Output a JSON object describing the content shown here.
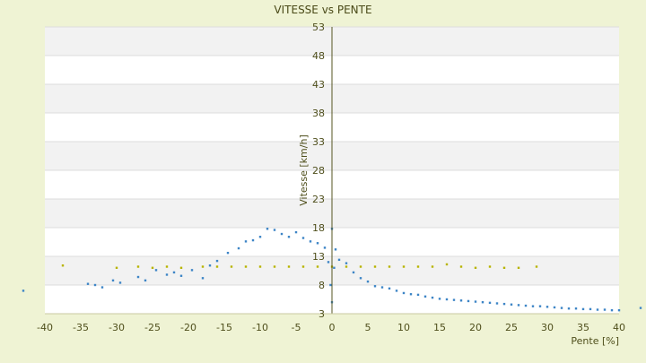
{
  "chart_data": {
    "type": "scatter",
    "title": "VITESSE vs PENTE",
    "xlabel": "Pente [%]",
    "ylabel": "Vitesse [km/h]",
    "xlim": [
      -40,
      40
    ],
    "ylim": [
      3,
      53
    ],
    "xticks": [
      -40,
      -35,
      -30,
      -25,
      -20,
      -15,
      -10,
      -5,
      0,
      5,
      10,
      15,
      20,
      25,
      30,
      35,
      40
    ],
    "yticks": [
      3,
      8,
      13,
      18,
      23,
      28,
      33,
      38,
      43,
      48,
      53
    ],
    "grid": "alternating horizontal bands",
    "legend": "none",
    "colors": {
      "background": "#eff3d4",
      "plot_band_light": "#ffffff",
      "plot_band_dark": "#f2f2f2",
      "series_blue": "#3d85c6",
      "series_yellow": "#b8b400",
      "axis": "#555522",
      "text": "#4f4f1c"
    },
    "series": [
      {
        "color": "#3d85c6",
        "values": [
          [
            -43,
            7.0
          ],
          [
            -34,
            8.2
          ],
          [
            -33,
            8.0
          ],
          [
            -32,
            7.6
          ],
          [
            -30.5,
            8.8
          ],
          [
            -29.5,
            8.4
          ],
          [
            -27,
            9.4
          ],
          [
            -26,
            8.8
          ],
          [
            -24.5,
            10.6
          ],
          [
            -23,
            9.8
          ],
          [
            -22,
            10.2
          ],
          [
            -21,
            9.6
          ],
          [
            -19.5,
            10.6
          ],
          [
            -18,
            9.2
          ],
          [
            -17,
            11.4
          ],
          [
            -16,
            12.2
          ],
          [
            -14.5,
            13.6
          ],
          [
            -13,
            14.4
          ],
          [
            -12,
            15.6
          ],
          [
            -11,
            15.8
          ],
          [
            -10,
            16.4
          ],
          [
            -9,
            17.8
          ],
          [
            -8,
            17.6
          ],
          [
            -7,
            16.9
          ],
          [
            -6,
            16.4
          ],
          [
            -5,
            17.2
          ],
          [
            -4,
            16.2
          ],
          [
            -3,
            15.6
          ],
          [
            -2,
            15.3
          ],
          [
            -1,
            14.5
          ],
          [
            -0.5,
            12.0
          ],
          [
            -0.2,
            8.0
          ],
          [
            0,
            5.0
          ],
          [
            0,
            17.8
          ],
          [
            0.3,
            11.0
          ],
          [
            0.5,
            14.2
          ],
          [
            1,
            12.4
          ],
          [
            2,
            11.8
          ],
          [
            3,
            10.2
          ],
          [
            4,
            9.2
          ],
          [
            5,
            8.6
          ],
          [
            6,
            7.8
          ],
          [
            7,
            7.6
          ],
          [
            8,
            7.4
          ],
          [
            9,
            7.0
          ],
          [
            10,
            6.6
          ],
          [
            11,
            6.4
          ],
          [
            12,
            6.3
          ],
          [
            13,
            6.0
          ],
          [
            14,
            5.8
          ],
          [
            15,
            5.6
          ],
          [
            16,
            5.5
          ],
          [
            17,
            5.4
          ],
          [
            18,
            5.3
          ],
          [
            19,
            5.2
          ],
          [
            20,
            5.1
          ],
          [
            21,
            5.0
          ],
          [
            22,
            4.9
          ],
          [
            23,
            4.8
          ],
          [
            24,
            4.7
          ],
          [
            25,
            4.6
          ],
          [
            26,
            4.5
          ],
          [
            27,
            4.4
          ],
          [
            28,
            4.3
          ],
          [
            29,
            4.3
          ],
          [
            30,
            4.2
          ],
          [
            31,
            4.1
          ],
          [
            32,
            4.0
          ],
          [
            33,
            3.9
          ],
          [
            34,
            3.9
          ],
          [
            35,
            3.8
          ],
          [
            36,
            3.8
          ],
          [
            37,
            3.7
          ],
          [
            38,
            3.7
          ],
          [
            39,
            3.6
          ],
          [
            40,
            3.6
          ],
          [
            43,
            4.0
          ]
        ]
      },
      {
        "color": "#b8b400",
        "values": [
          [
            -37.5,
            11.4
          ],
          [
            -30,
            11.0
          ],
          [
            -27,
            11.2
          ],
          [
            -25,
            11.0
          ],
          [
            -23,
            11.2
          ],
          [
            -21,
            11.0
          ],
          [
            -18,
            11.2
          ],
          [
            -16,
            11.2
          ],
          [
            -14,
            11.2
          ],
          [
            -12,
            11.2
          ],
          [
            -10,
            11.2
          ],
          [
            -8,
            11.2
          ],
          [
            -6,
            11.2
          ],
          [
            -4,
            11.2
          ],
          [
            -2,
            11.2
          ],
          [
            0,
            11.2
          ],
          [
            2,
            11.2
          ],
          [
            4,
            11.2
          ],
          [
            6,
            11.2
          ],
          [
            8,
            11.2
          ],
          [
            10,
            11.2
          ],
          [
            12,
            11.2
          ],
          [
            14,
            11.2
          ],
          [
            16,
            11.6
          ],
          [
            18,
            11.2
          ],
          [
            20,
            11.0
          ],
          [
            22,
            11.2
          ],
          [
            24,
            11.0
          ],
          [
            26,
            11.0
          ],
          [
            28.5,
            11.2
          ]
        ]
      }
    ]
  }
}
